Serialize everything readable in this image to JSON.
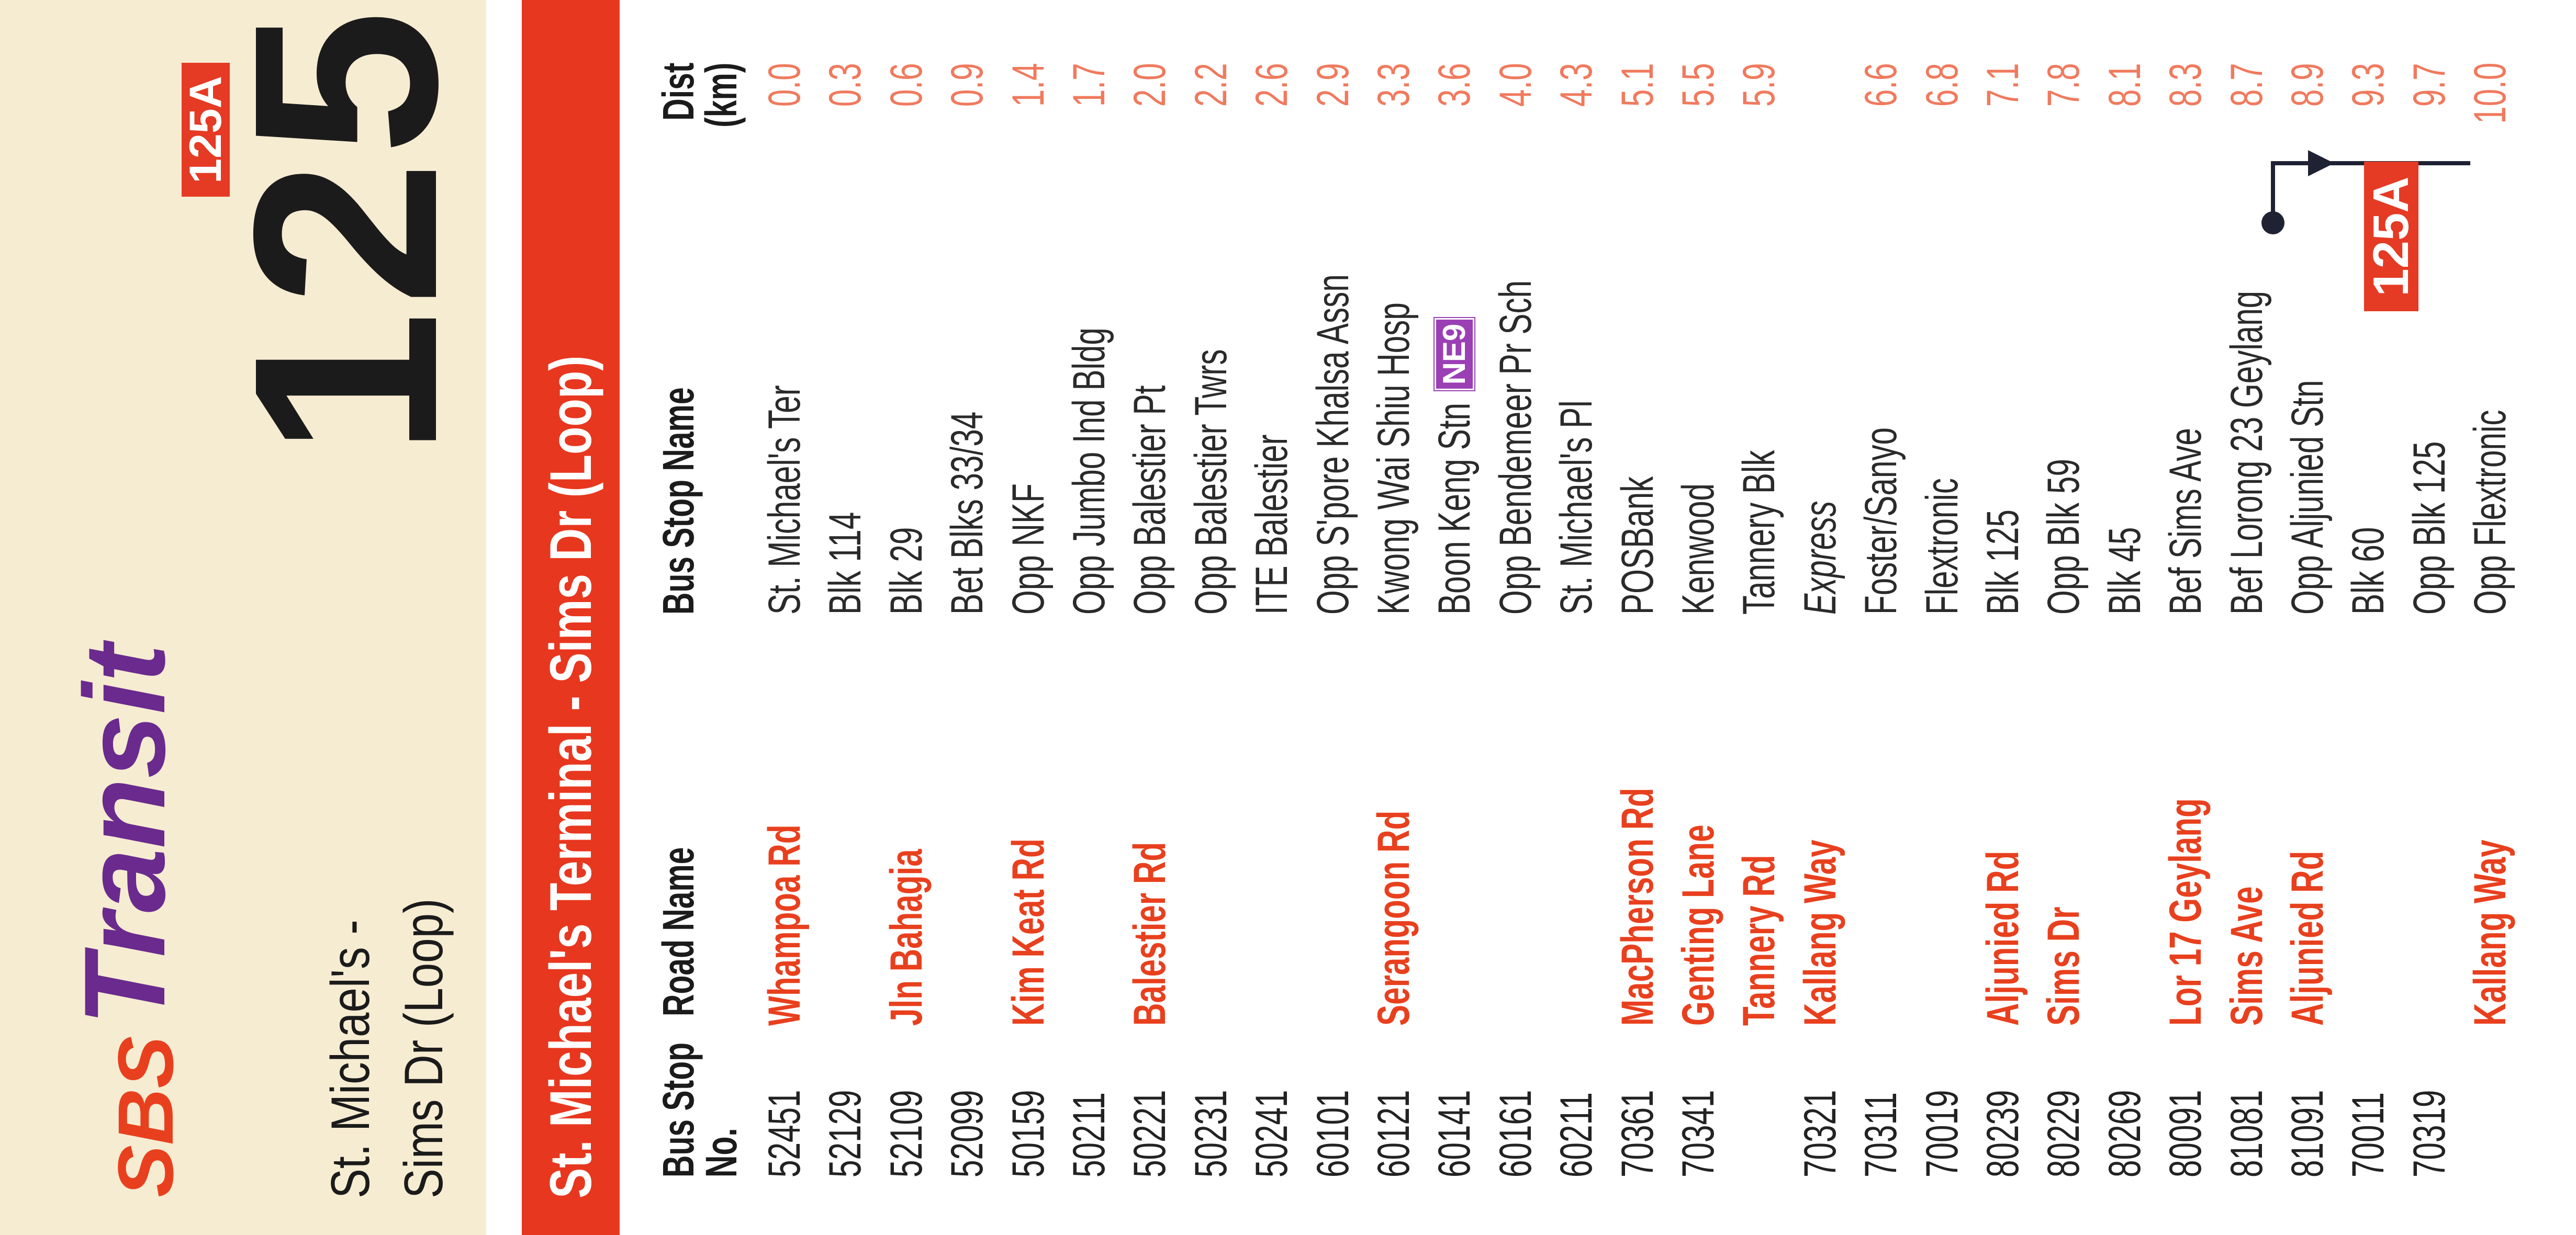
{
  "header": {
    "brand_sbs": "SBS",
    "brand_transit": "Transit",
    "route_number": "125",
    "alt_route": "125A",
    "subtitle_line1": "St. Michael's -",
    "subtitle_line2": "Sims Dr (Loop)",
    "banner": "St. Michael's Terminal - Sims Dr (Loop)"
  },
  "columns": {
    "stop_no_1": "Bus Stop",
    "stop_no_2": "No.",
    "road": "Road Name",
    "name": "Bus Stop Name",
    "dist_1": "Dist",
    "dist_2": "(km)"
  },
  "rows": [
    {
      "no": "52451",
      "road": "Whampoa Rd",
      "name": "St. Michael's Ter",
      "dist": "0.0"
    },
    {
      "no": "52129",
      "road": "",
      "name": "Blk 114",
      "dist": "0.3"
    },
    {
      "no": "52109",
      "road": "Jln Bahagia",
      "name": "Blk 29",
      "dist": "0.6"
    },
    {
      "no": "52099",
      "road": "",
      "name": "Bet Blks 33/34",
      "dist": "0.9"
    },
    {
      "no": "50159",
      "road": "Kim Keat Rd",
      "name": "Opp NKF",
      "dist": "1.4"
    },
    {
      "no": "50211",
      "road": "",
      "name": "Opp Jumbo Ind Bldg",
      "dist": "1.7"
    },
    {
      "no": "50221",
      "road": "Balestier Rd",
      "name": "Opp Balestier Pt",
      "dist": "2.0"
    },
    {
      "no": "50231",
      "road": "",
      "name": "Opp Balestier Twrs",
      "dist": "2.2"
    },
    {
      "no": "50241",
      "road": "",
      "name": "ITE Balestier",
      "dist": "2.6"
    },
    {
      "no": "60101",
      "road": "",
      "name": "Opp S'pore Khalsa Assn",
      "dist": "2.9"
    },
    {
      "no": "60121",
      "road": "Serangoon Rd",
      "name": "Kwong Wai Shiu Hosp",
      "dist": "3.3"
    },
    {
      "no": "60141",
      "road": "",
      "name": "Boon Keng Stn",
      "badge": "NE9",
      "dist": "3.6"
    },
    {
      "no": "60161",
      "road": "",
      "name": "Opp Bendemeer Pr Sch",
      "dist": "4.0"
    },
    {
      "no": "60211",
      "road": "",
      "name": "St. Michael's Pl",
      "dist": "4.3"
    },
    {
      "no": "70361",
      "road": "MacPherson Rd",
      "name": "POSBank",
      "dist": "5.1"
    },
    {
      "no": "70341",
      "road": "Genting Lane",
      "name": "Kenwood",
      "dist": "5.5"
    },
    {
      "no": "",
      "road": "Tannery Rd",
      "name": "Tannery Blk",
      "dist": "5.9"
    },
    {
      "no": "70321",
      "road": "Kallang Way",
      "name": "Express",
      "express": true,
      "dist": ""
    },
    {
      "no": "70311",
      "road": "",
      "name": "Foster/Sanyo",
      "dist": "6.6"
    },
    {
      "no": "70019",
      "road": "",
      "name": "Flextronic",
      "dist": "6.8"
    },
    {
      "no": "80239",
      "road": "Aljunied Rd",
      "name": "Blk 125",
      "dist": "7.1"
    },
    {
      "no": "80229",
      "road": "Sims Dr",
      "name": "Opp Blk 59",
      "dist": "7.8"
    },
    {
      "no": "80269",
      "road": "",
      "name": "Blk 45",
      "dist": "8.1"
    },
    {
      "no": "80091",
      "road": "Lor 17 Geylang",
      "name": "Bef Sims Ave",
      "dist": "8.3"
    },
    {
      "no": "81081",
      "road": "Sims Ave",
      "name": "Bef Lorong 23 Geylang",
      "dist": "8.7"
    },
    {
      "no": "81091",
      "road": "Aljunied Rd",
      "name": "Opp Aljunied Stn",
      "dist": "8.9"
    },
    {
      "no": "70011",
      "road": "",
      "name": "Blk 60",
      "dist": "9.3"
    },
    {
      "no": "70319",
      "road": "",
      "name": "Opp Blk 125",
      "dist": "9.7"
    },
    {
      "no": "",
      "road": "Kallang Way",
      "name": "Opp Flextronic",
      "dist": "10.0"
    }
  ],
  "loop_badge": "125A",
  "colors": {
    "red": "#e8371f",
    "road": "#e8401e",
    "dist": "#f07a5e",
    "cream": "#f6ecd2",
    "purple": "#6a2a8e",
    "mrt": "#9b3fb5"
  }
}
